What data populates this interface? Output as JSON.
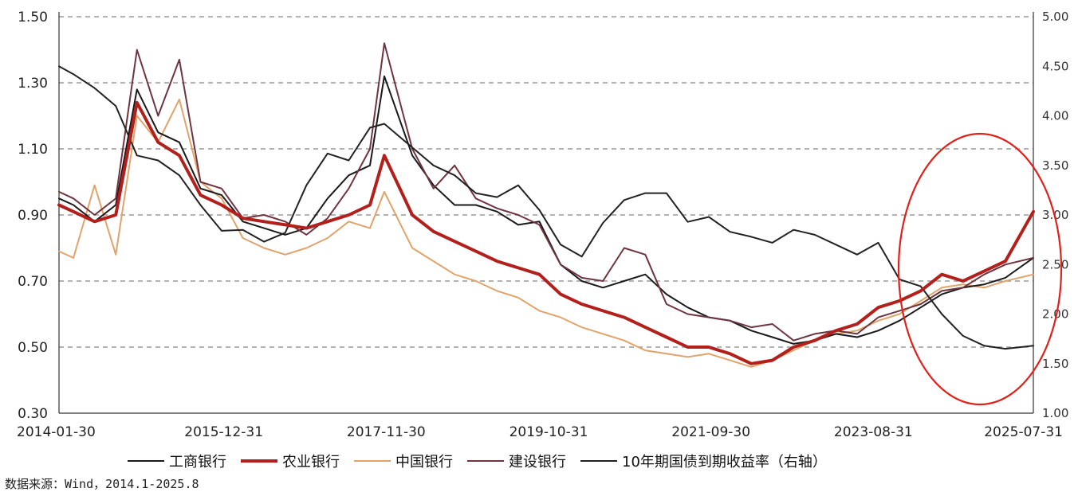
{
  "chart_data": {
    "type": "line",
    "left_ticks": [
      "1.50",
      "1.30",
      "1.10",
      "0.90",
      "0.70",
      "0.50",
      "0.30"
    ],
    "right_ticks": [
      "5.00",
      "4.50",
      "4.00",
      "3.50",
      "3.00",
      "2.50",
      "2.00",
      "1.50",
      "1.00"
    ],
    "x_ticks": [
      "2014-01-30",
      "2015-12-31",
      "2017-11-30",
      "2019-10-31",
      "2021-09-30",
      "2023-08-31",
      "2025-07-31"
    ],
    "ylim_left": [
      0.3,
      1.5
    ],
    "ylim_right": [
      1.0,
      5.0
    ],
    "grid": "horizontal-dashed",
    "legend_position": "bottom",
    "x": [
      2014.08,
      2014.25,
      2014.5,
      2014.75,
      2015.0,
      2015.25,
      2015.5,
      2015.75,
      2016.0,
      2016.25,
      2016.5,
      2016.75,
      2017.0,
      2017.25,
      2017.5,
      2017.75,
      2017.92,
      2018.25,
      2018.5,
      2018.75,
      2019.0,
      2019.25,
      2019.5,
      2019.75,
      2020.0,
      2020.25,
      2020.5,
      2020.75,
      2021.0,
      2021.25,
      2021.5,
      2021.75,
      2022.0,
      2022.25,
      2022.5,
      2022.75,
      2023.0,
      2023.25,
      2023.5,
      2023.75,
      2024.0,
      2024.25,
      2024.5,
      2024.75,
      2025.0,
      2025.25,
      2025.58
    ],
    "series": [
      {
        "name": "工商银行",
        "color": "#1a1a1a",
        "width": 2,
        "values": [
          0.95,
          0.93,
          0.88,
          0.93,
          1.28,
          1.15,
          1.12,
          0.98,
          0.96,
          0.88,
          0.86,
          0.84,
          0.86,
          0.95,
          1.02,
          1.05,
          1.32,
          1.08,
          0.99,
          0.93,
          0.93,
          0.91,
          0.87,
          0.88,
          0.75,
          0.7,
          0.68,
          0.7,
          0.72,
          0.66,
          0.62,
          0.59,
          0.58,
          0.55,
          0.53,
          0.51,
          0.52,
          0.54,
          0.53,
          0.55,
          0.58,
          0.62,
          0.66,
          0.68,
          0.69,
          0.71,
          0.77
        ]
      },
      {
        "name": "农业银行",
        "color": "#b3201c",
        "width": 4,
        "values": [
          0.93,
          0.91,
          0.88,
          0.9,
          1.24,
          1.12,
          1.08,
          0.96,
          0.93,
          0.89,
          0.88,
          0.87,
          0.86,
          0.88,
          0.9,
          0.93,
          1.08,
          0.9,
          0.85,
          0.82,
          0.79,
          0.76,
          0.74,
          0.72,
          0.66,
          0.63,
          0.61,
          0.59,
          0.56,
          0.53,
          0.5,
          0.5,
          0.48,
          0.45,
          0.46,
          0.5,
          0.52,
          0.55,
          0.57,
          0.62,
          0.64,
          0.67,
          0.72,
          0.7,
          0.73,
          0.76,
          0.91
        ]
      },
      {
        "name": "中国银行",
        "color": "#e2a36a",
        "width": 2,
        "values": [
          0.79,
          0.77,
          0.99,
          0.78,
          1.2,
          1.12,
          1.25,
          1.0,
          0.95,
          0.83,
          0.8,
          0.78,
          0.8,
          0.83,
          0.88,
          0.86,
          0.97,
          0.8,
          0.76,
          0.72,
          0.7,
          0.67,
          0.65,
          0.61,
          0.59,
          0.56,
          0.54,
          0.52,
          0.49,
          0.48,
          0.47,
          0.48,
          0.46,
          0.44,
          0.46,
          0.49,
          0.52,
          0.54,
          0.55,
          0.58,
          0.6,
          0.64,
          0.68,
          0.69,
          0.68,
          0.7,
          0.72
        ]
      },
      {
        "name": "建设银行",
        "color": "#6e3440",
        "width": 2,
        "values": [
          0.97,
          0.95,
          0.9,
          0.95,
          1.4,
          1.2,
          1.37,
          1.0,
          0.98,
          0.89,
          0.9,
          0.88,
          0.84,
          0.89,
          0.98,
          1.1,
          1.42,
          1.1,
          0.98,
          1.05,
          0.95,
          0.92,
          0.9,
          0.87,
          0.75,
          0.71,
          0.7,
          0.8,
          0.78,
          0.63,
          0.6,
          0.59,
          0.58,
          0.56,
          0.57,
          0.52,
          0.54,
          0.55,
          0.54,
          0.59,
          0.61,
          0.63,
          0.67,
          0.68,
          0.72,
          0.75,
          0.77
        ]
      },
      {
        "name": "10年期国债到期收益率（右轴）",
        "color": "#222222",
        "width": 2,
        "axis": "right",
        "values": [
          4.5,
          4.42,
          4.28,
          4.1,
          3.6,
          3.55,
          3.4,
          3.1,
          2.84,
          2.85,
          2.73,
          2.82,
          3.3,
          3.62,
          3.55,
          3.88,
          3.92,
          3.68,
          3.5,
          3.4,
          3.22,
          3.18,
          3.3,
          3.05,
          2.7,
          2.58,
          2.92,
          3.15,
          3.22,
          3.22,
          2.93,
          2.98,
          2.83,
          2.78,
          2.72,
          2.85,
          2.8,
          2.7,
          2.6,
          2.72,
          2.35,
          2.28,
          2.0,
          1.78,
          1.68,
          1.65,
          1.68
        ]
      }
    ]
  },
  "legend": [
    {
      "label": "工商银行",
      "color": "#1a1a1a",
      "width": 2
    },
    {
      "label": "农业银行",
      "color": "#b3201c",
      "width": 4
    },
    {
      "label": "中国银行",
      "color": "#e2a36a",
      "width": 2
    },
    {
      "label": "建设银行",
      "color": "#6e3440",
      "width": 2
    },
    {
      "label": "10年期国债到期收益率（右轴）",
      "color": "#222222",
      "width": 2
    }
  ],
  "source": "数据来源：Wind，2014.1-2025.8",
  "highlight_color": "#e0201a"
}
